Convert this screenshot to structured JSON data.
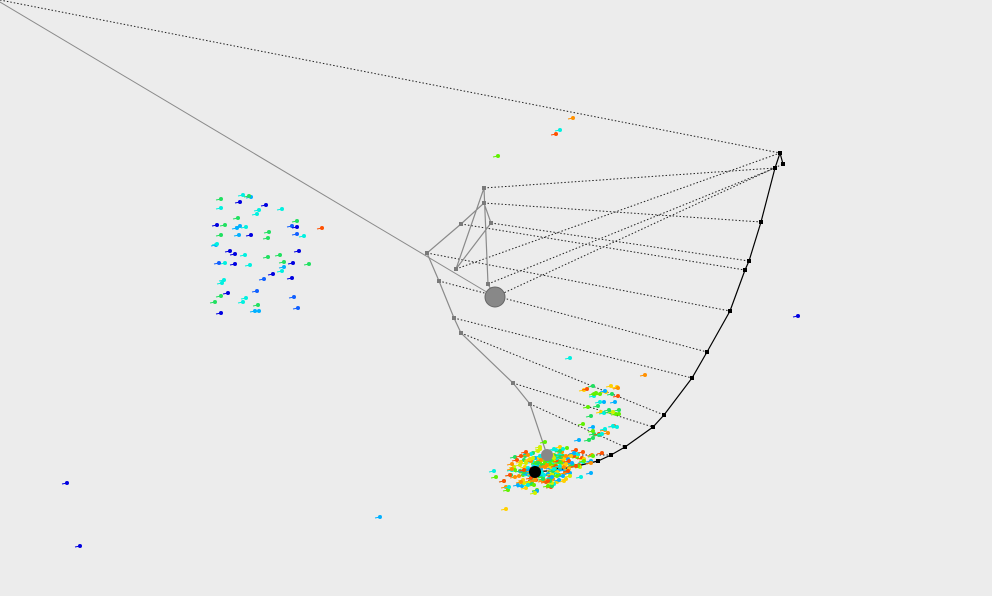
{
  "colors": {
    "background": "#ececec",
    "black_path": "#000000",
    "gray_path": "#8a8a8a",
    "gray_marker": "#888888",
    "dotted_link": "#222222",
    "particle_palette": [
      "#0000e0",
      "#1060ff",
      "#00b0ff",
      "#00f0e0",
      "#20e060",
      "#60f000",
      "#d0f000",
      "#ffd000",
      "#ff9000",
      "#ff5000"
    ]
  },
  "scene": {
    "description_hidden": "",
    "particle_cloud_count_visible": "many"
  }
}
